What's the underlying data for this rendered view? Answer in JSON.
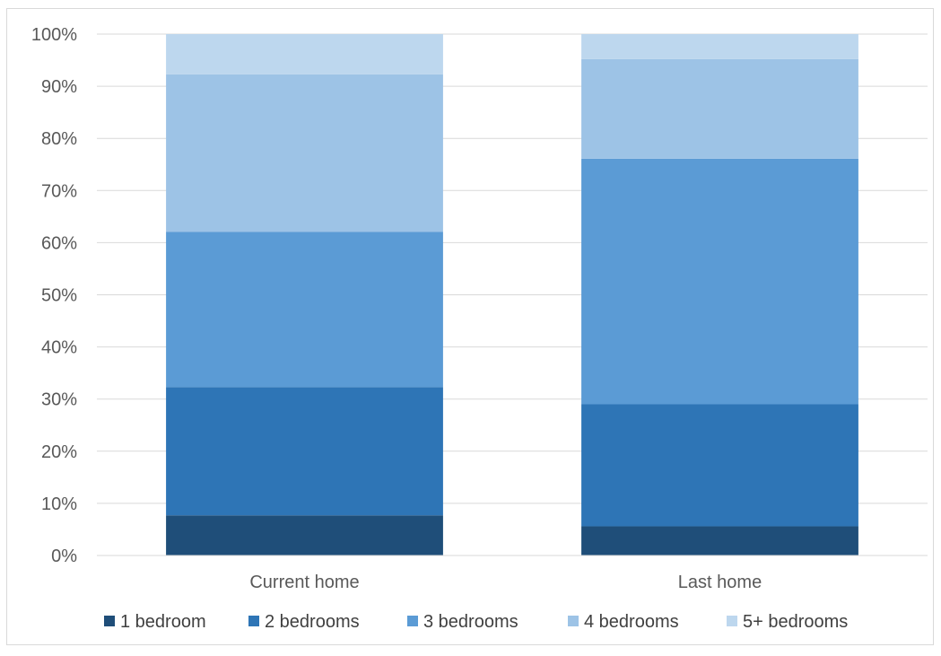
{
  "chart_data": {
    "type": "bar",
    "stacked": true,
    "percent": true,
    "categories": [
      "Current home",
      "Last home"
    ],
    "series": [
      {
        "name": "1 bedroom",
        "values": [
          7.7,
          5.6
        ],
        "color": "#1f4e79"
      },
      {
        "name": "2 bedrooms",
        "values": [
          24.6,
          23.4
        ],
        "color": "#2e75b6"
      },
      {
        "name": "3 bedrooms",
        "values": [
          29.8,
          47.1
        ],
        "color": "#5b9bd5"
      },
      {
        "name": "4 bedrooms",
        "values": [
          30.2,
          19.1
        ],
        "color": "#9dc3e6"
      },
      {
        "name": "5+ bedrooms",
        "values": [
          7.7,
          4.8
        ],
        "color": "#bdd7ee"
      }
    ],
    "ylim": [
      0,
      100
    ],
    "y_ticks": [
      "0%",
      "10%",
      "20%",
      "30%",
      "40%",
      "50%",
      "60%",
      "70%",
      "80%",
      "90%",
      "100%"
    ],
    "grid": true,
    "legend_position": "bottom",
    "title": "",
    "xlabel": "",
    "ylabel": ""
  }
}
